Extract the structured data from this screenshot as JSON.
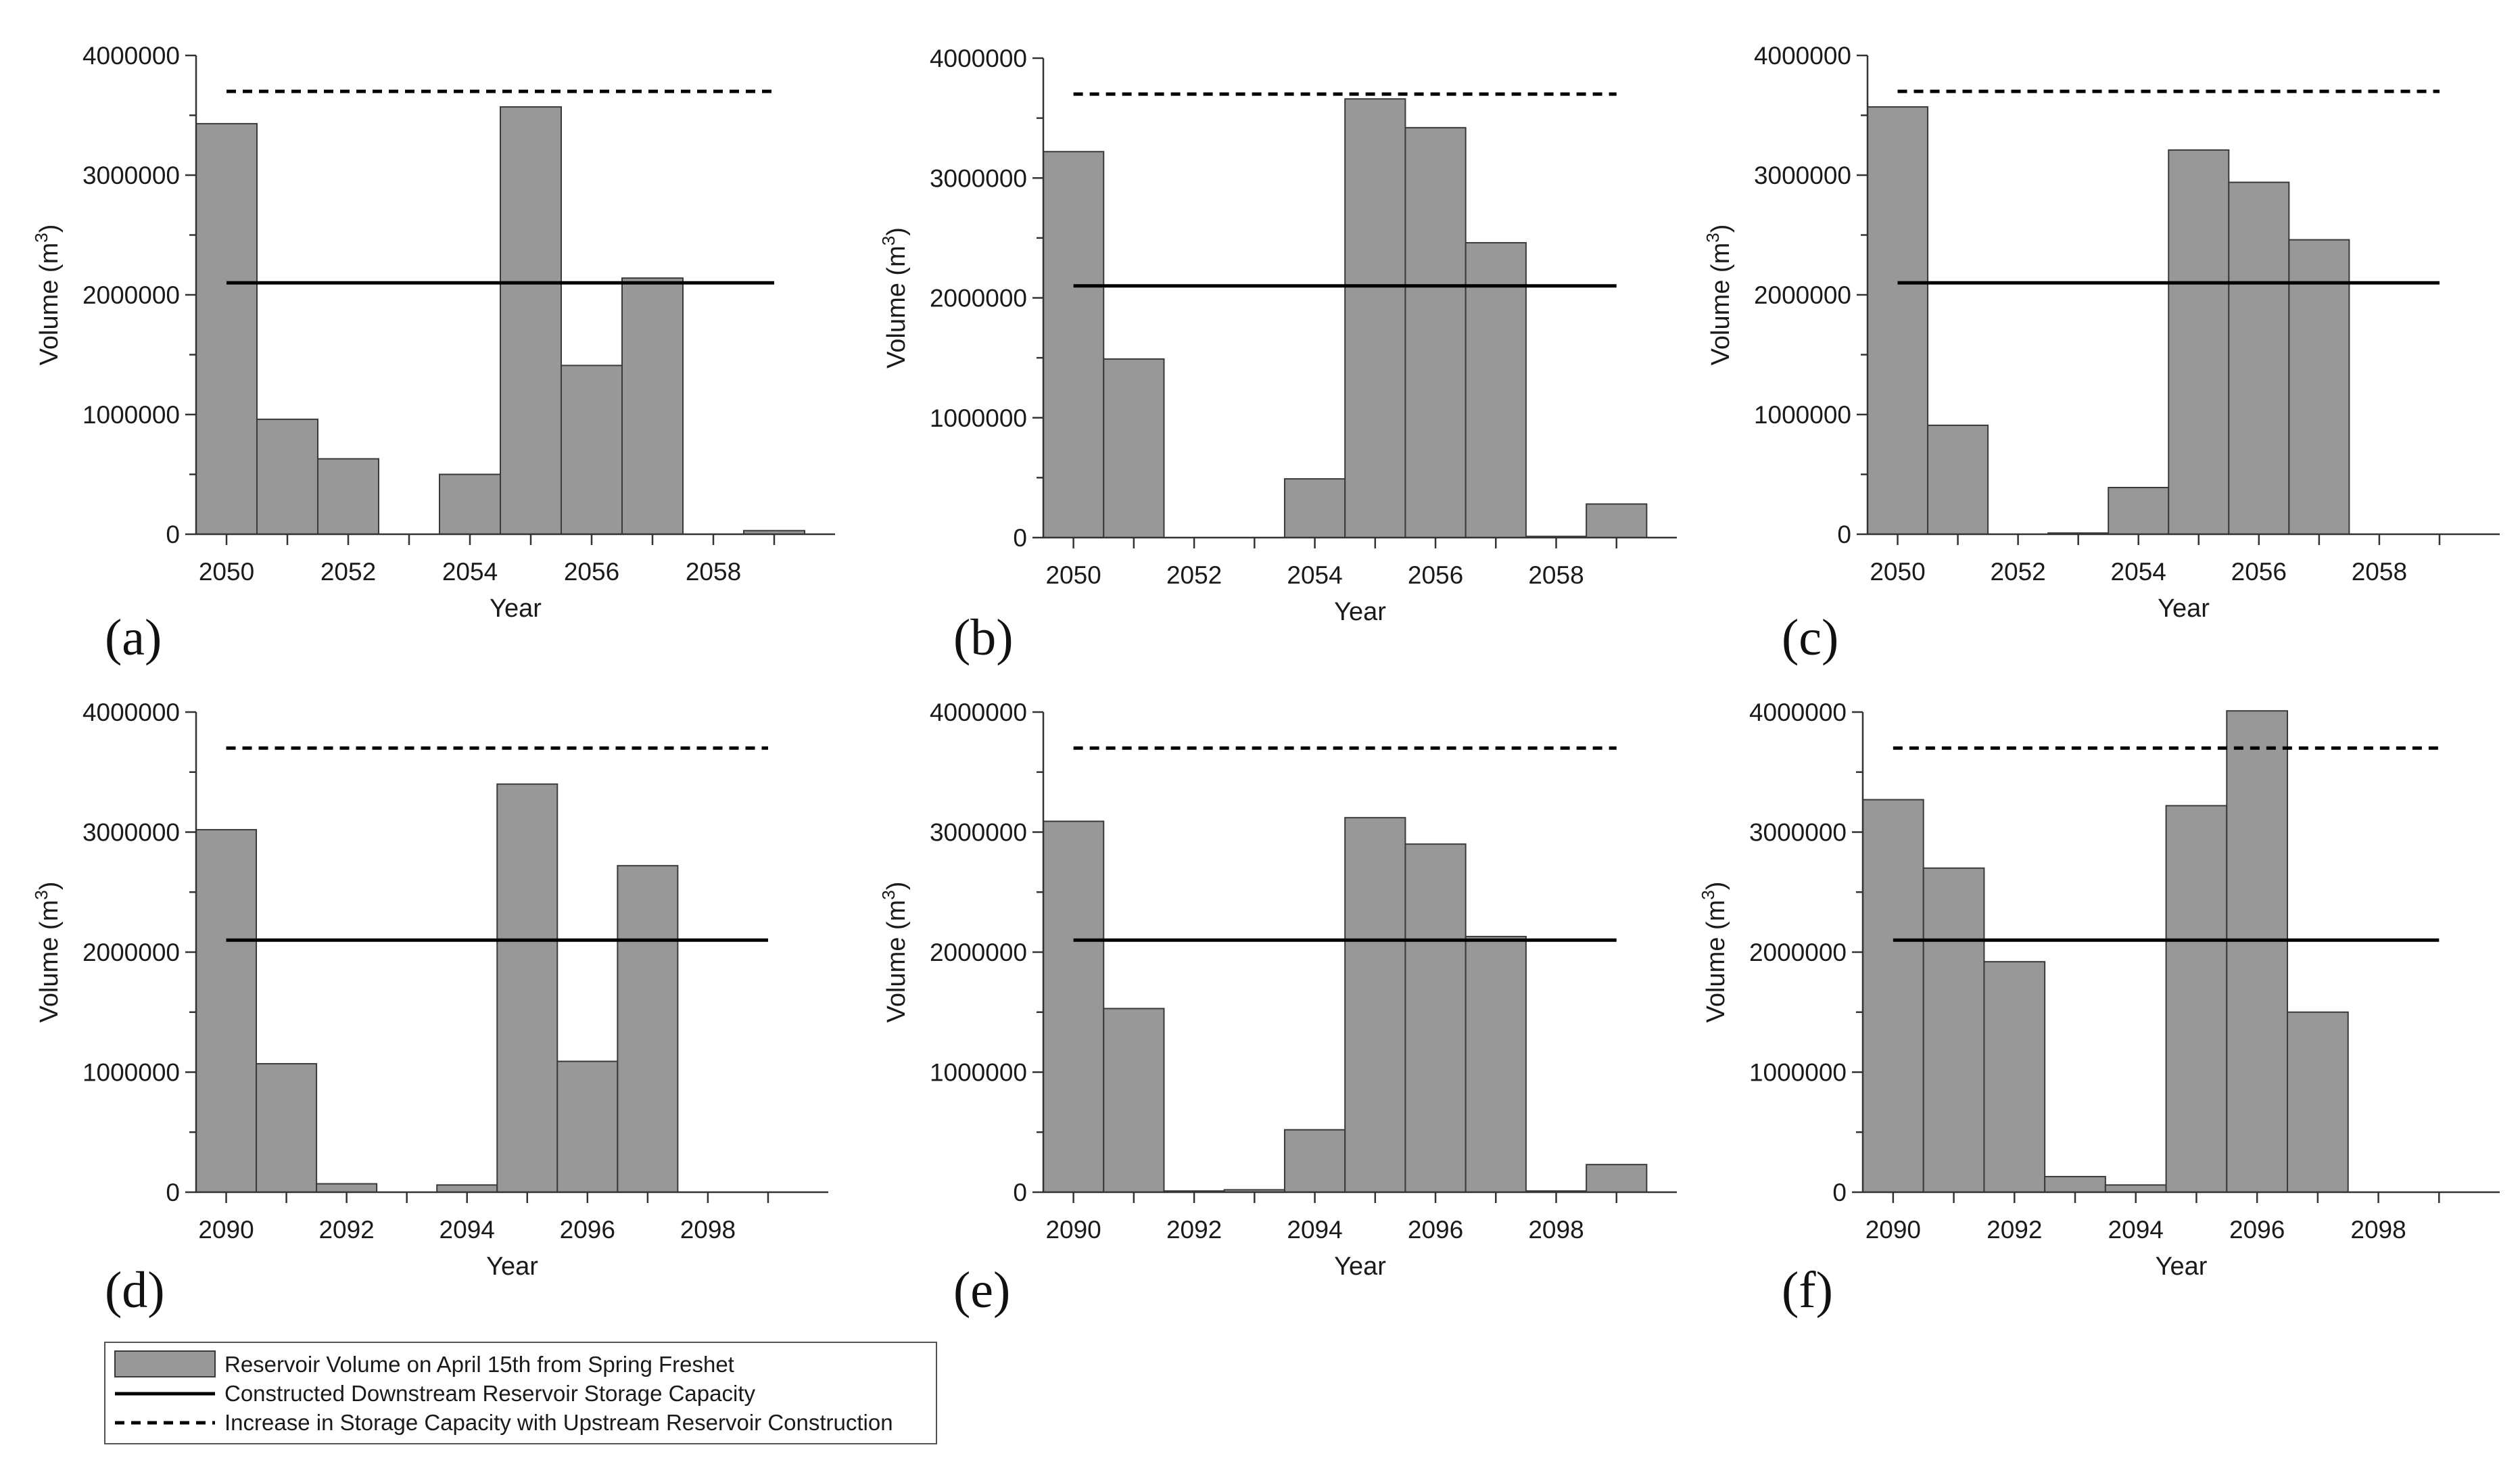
{
  "legend": {
    "bar_label": "Reservoir Volume on April 15th from Spring Freshet",
    "solid_label": "Constructed Downstream Reservoir Storage Capacity",
    "dashed_label": "Increase in Storage Capacity with Upstream Reservoir Construction"
  },
  "colors": {
    "bar": "#989898",
    "bar_edge": "#3a3a3a",
    "axis": "#333333",
    "line": "#000000"
  },
  "chart_data": [
    {
      "type": "bar",
      "panel": "(a)",
      "categories": [
        2050,
        2051,
        2052,
        2053,
        2054,
        2055,
        2056,
        2057,
        2058,
        2059
      ],
      "values": [
        3430000,
        960000,
        630000,
        0,
        500000,
        3570000,
        1410000,
        2140000,
        0,
        30000
      ],
      "xticks": [
        "2050",
        "2052",
        "2054",
        "2056",
        "2058"
      ],
      "yticks": [
        "0",
        "1000000",
        "2000000",
        "3000000",
        "4000000"
      ],
      "ylim": [
        0,
        4000000
      ],
      "solid_line": 2100000,
      "dashed_line": 3700000,
      "xlabel": "Year",
      "ylabel_main": "Volume (m",
      "ylabel_sup": "3",
      "ylabel_end": ")"
    },
    {
      "type": "bar",
      "panel": "(b)",
      "categories": [
        2050,
        2051,
        2052,
        2053,
        2054,
        2055,
        2056,
        2057,
        2058,
        2059
      ],
      "values": [
        3220000,
        1490000,
        0,
        0,
        490000,
        3660000,
        3420000,
        2460000,
        10000,
        280000
      ],
      "xticks": [
        "2050",
        "2052",
        "2054",
        "2056",
        "2058"
      ],
      "yticks": [
        "0",
        "1000000",
        "2000000",
        "3000000",
        "4000000"
      ],
      "ylim": [
        0,
        4000000
      ],
      "solid_line": 2100000,
      "dashed_line": 3700000,
      "xlabel": "Year",
      "ylabel_main": "Volume (m",
      "ylabel_sup": "3",
      "ylabel_end": ")"
    },
    {
      "type": "bar",
      "panel": "(c)",
      "categories": [
        2050,
        2051,
        2052,
        2053,
        2054,
        2055,
        2056,
        2057,
        2058,
        2059
      ],
      "values": [
        3570000,
        910000,
        0,
        10000,
        390000,
        3210000,
        2940000,
        2460000,
        0,
        0
      ],
      "xticks": [
        "2050",
        "2052",
        "2054",
        "2056",
        "2058"
      ],
      "yticks": [
        "0",
        "1000000",
        "2000000",
        "3000000",
        "4000000"
      ],
      "ylim": [
        0,
        4000000
      ],
      "solid_line": 2100000,
      "dashed_line": 3700000,
      "xlabel": "Year",
      "ylabel_main": "Volume (m",
      "ylabel_sup": "3",
      "ylabel_end": ")"
    },
    {
      "type": "bar",
      "panel": "(d)",
      "categories": [
        2090,
        2091,
        2092,
        2093,
        2094,
        2095,
        2096,
        2097,
        2098,
        2099
      ],
      "values": [
        3020000,
        1070000,
        70000,
        0,
        60000,
        3400000,
        1090000,
        2720000,
        0,
        0
      ],
      "xticks": [
        "2090",
        "2092",
        "2094",
        "2096",
        "2098"
      ],
      "yticks": [
        "0",
        "1000000",
        "2000000",
        "3000000",
        "4000000"
      ],
      "ylim": [
        0,
        4000000
      ],
      "solid_line": 2100000,
      "dashed_line": 3700000,
      "xlabel": "Year",
      "ylabel_main": "Volume (m",
      "ylabel_sup": "3",
      "ylabel_end": ")"
    },
    {
      "type": "bar",
      "panel": "(e)",
      "categories": [
        2090,
        2091,
        2092,
        2093,
        2094,
        2095,
        2096,
        2097,
        2098,
        2099
      ],
      "values": [
        3090000,
        1530000,
        10000,
        20000,
        520000,
        3120000,
        2900000,
        2130000,
        10000,
        230000
      ],
      "xticks": [
        "2090",
        "2092",
        "2094",
        "2096",
        "2098"
      ],
      "yticks": [
        "0",
        "1000000",
        "2000000",
        "3000000",
        "4000000"
      ],
      "ylim": [
        0,
        4000000
      ],
      "solid_line": 2100000,
      "dashed_line": 3700000,
      "xlabel": "Year",
      "ylabel_main": "Volume (m",
      "ylabel_sup": "3",
      "ylabel_end": ")"
    },
    {
      "type": "bar",
      "panel": "(f)",
      "categories": [
        2090,
        2091,
        2092,
        2093,
        2094,
        2095,
        2096,
        2097,
        2098,
        2099
      ],
      "values": [
        3270000,
        2700000,
        1920000,
        130000,
        60000,
        3220000,
        4010000,
        1500000,
        0,
        0
      ],
      "xticks": [
        "2090",
        "2092",
        "2094",
        "2096",
        "2098"
      ],
      "yticks": [
        "0",
        "1000000",
        "2000000",
        "3000000",
        "4000000"
      ],
      "ylim": [
        0,
        4000000
      ],
      "solid_line": 2100000,
      "dashed_line": 3700000,
      "xlabel": "Year",
      "ylabel_main": "Volume (m",
      "ylabel_sup": "3",
      "ylabel_end": ")"
    }
  ]
}
